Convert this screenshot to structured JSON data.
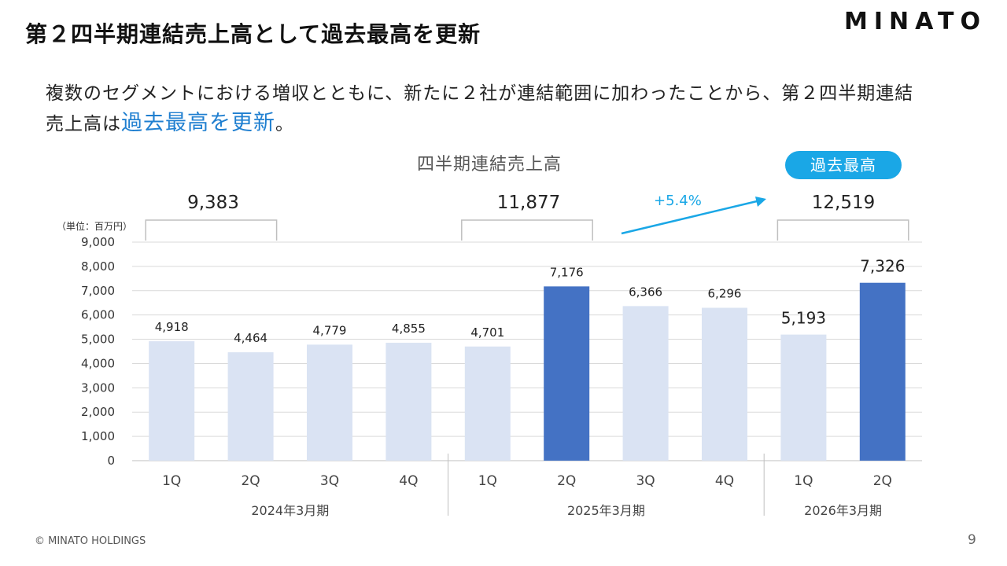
{
  "header": {
    "title": "第２四半期連結売上高として過去最高を更新",
    "logo": "MINATO"
  },
  "lead": {
    "text_before": "複数のセグメントにおける増収とともに、新たに２社が連結範囲に加わったことから、第２四半期連結売上高は",
    "highlight": "過去最高を更新",
    "text_after": "。"
  },
  "badge": {
    "label": "過去最高"
  },
  "growth": {
    "label": "+5.4%"
  },
  "totals": [
    {
      "label": "9,383"
    },
    {
      "label": "11,877"
    },
    {
      "label": "12,519"
    }
  ],
  "colors": {
    "light": "#dae3f3",
    "dark": "#4472c4",
    "accent": "#1aa7e6",
    "grid": "#d9d9d9"
  },
  "chart_data": {
    "type": "bar",
    "title": "四半期連結売上高",
    "ylabel": "（単位：百万円）",
    "ylim": [
      0,
      9000
    ],
    "yticks": [
      0,
      1000,
      2000,
      3000,
      4000,
      5000,
      6000,
      7000,
      8000,
      9000
    ],
    "ytick_labels": [
      "0",
      "1,000",
      "2,000",
      "3,000",
      "4,000",
      "5,000",
      "6,000",
      "7,000",
      "8,000",
      "9,000"
    ],
    "categories": [
      "1Q",
      "2Q",
      "3Q",
      "4Q",
      "1Q",
      "2Q",
      "3Q",
      "4Q",
      "1Q",
      "2Q"
    ],
    "values": [
      4918,
      4464,
      4779,
      4855,
      4701,
      7176,
      6366,
      6296,
      5193,
      7326
    ],
    "value_labels": [
      "4,918",
      "4,464",
      "4,779",
      "4,855",
      "4,701",
      "7,176",
      "6,366",
      "6,296",
      "5,193",
      "7,326"
    ],
    "highlighted": [
      false,
      false,
      false,
      false,
      false,
      true,
      false,
      false,
      false,
      true
    ],
    "groups": [
      {
        "label": "2024年3月期",
        "start": 0,
        "end": 3
      },
      {
        "label": "2025年3月期",
        "start": 4,
        "end": 7
      },
      {
        "label": "2026年3月期",
        "start": 8,
        "end": 9
      }
    ]
  },
  "footer": {
    "copyright": "© MINATO HOLDINGS",
    "page": "9"
  }
}
